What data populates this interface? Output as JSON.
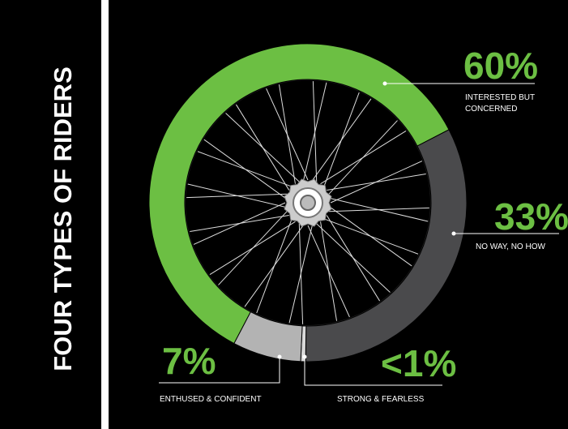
{
  "chart_data": {
    "type": "pie",
    "title": "FOUR TYPES OF RIDERS",
    "categories": [
      "INTERESTED BUT CONCERNED",
      "NO WAY, NO HOW",
      "STRONG & FEARLESS",
      "ENTHUSED & CONFIDENT"
    ],
    "values": [
      60,
      33,
      0.5,
      7
    ],
    "value_labels": [
      "60%",
      "33%",
      "<1%",
      "7%"
    ],
    "colors": [
      "#6cbf43",
      "#4a4a4c",
      "#d9d9d9",
      "#b3b3b3"
    ]
  }
}
